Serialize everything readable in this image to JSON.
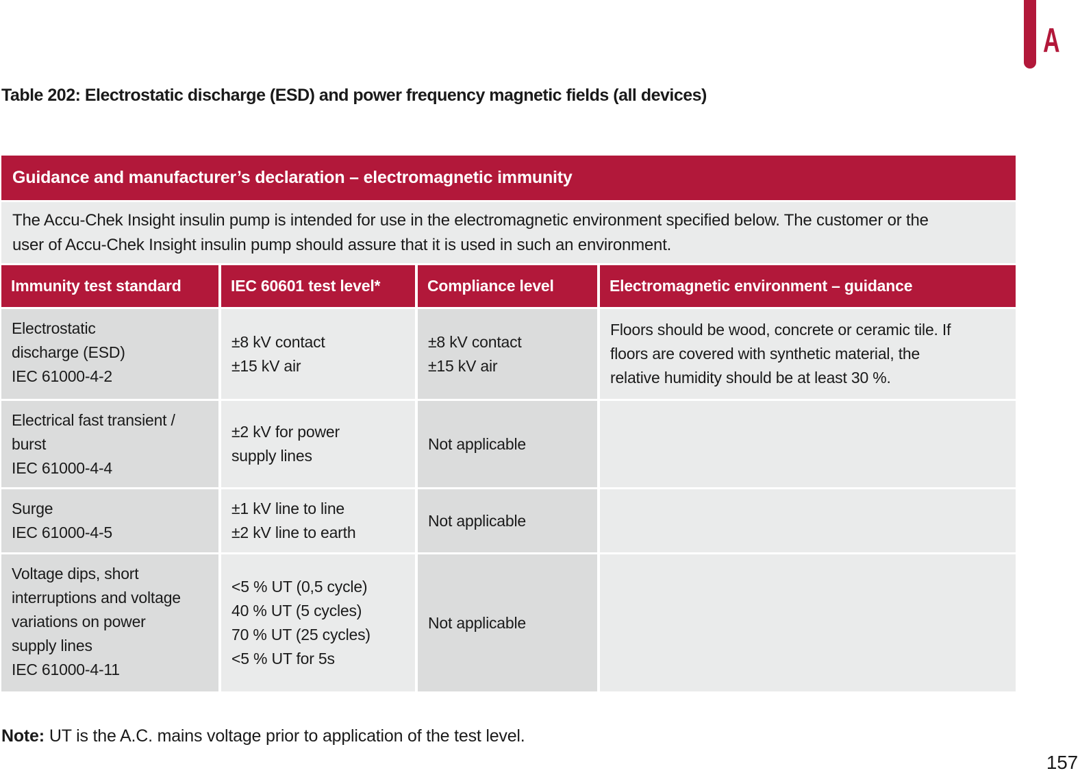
{
  "page": {
    "chapter_tab": "A",
    "title": "Table 202: Electrostatic discharge (ESD) and power frequency magnetic fields (all devices)",
    "note_label": "Note:",
    "note_text": "UT is the A.C. mains voltage prior to application of the test level.",
    "page_number": "157"
  },
  "table": {
    "header": "Guidance and manufacturer’s declaration – electromagnetic immunity",
    "intro_lines": [
      "The Accu-Chek Insight insulin pump is intended for use in the electromagnetic environment specified below. The customer or the",
      "user of Accu-Chek Insight insulin pump should assure that it is used in such an environment."
    ],
    "columns": [
      "Immunity test standard",
      "IEC 60601 test level*",
      "Compliance level",
      "Electromagnetic environment – guidance"
    ],
    "rows": [
      {
        "standard": [
          "Electrostatic",
          "discharge (ESD)",
          "IEC 61000-4-2"
        ],
        "test_level": [
          "±8 kV contact",
          "±15 kV air"
        ],
        "compliance": [
          "±8 kV contact",
          "±15 kV air"
        ],
        "guidance": [
          "Floors should be wood, concrete or ceramic tile. If",
          "floors are covered with synthetic material, the",
          "relative humidity should be at least 30 %."
        ]
      },
      {
        "standard": [
          "Electrical fast transient /",
          "burst",
          "IEC 61000-4-4"
        ],
        "test_level": [
          "±2 kV for power",
          "supply lines"
        ],
        "compliance": [
          "Not applicable"
        ],
        "guidance": []
      },
      {
        "standard": [
          "Surge",
          "IEC 61000-4-5"
        ],
        "test_level": [
          "±1 kV line to line",
          "±2 kV line to earth"
        ],
        "compliance": [
          "Not applicable"
        ],
        "guidance": []
      },
      {
        "standard": [
          "Voltage dips, short",
          "interruptions and voltage",
          "variations on power",
          "supply lines",
          "IEC 61000-4-11"
        ],
        "test_level": [
          "<5 % UT (0,5 cycle)",
          "40 % UT (5 cycles)",
          "70 % UT (25 cycles)",
          "<5 % UT for 5s"
        ],
        "compliance": [
          "Not applicable"
        ],
        "guidance": []
      }
    ]
  },
  "colors": {
    "accent_red": "#B2183A",
    "cell_dark": "#DBDCDC",
    "cell_light": "#EAEBEB",
    "text": "#1A1A1A"
  }
}
